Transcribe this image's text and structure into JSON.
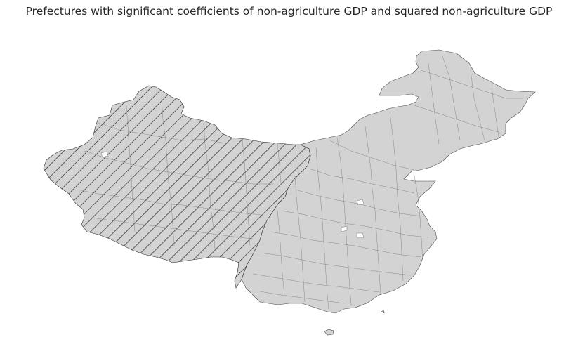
{
  "title": "Prefectures with significant coefficients of non-agriculture GDP and squared non-agriculture GDP",
  "legend": [],
  "colors": {
    "base_fill": "#d3d3d3",
    "boundary": "#4a4a4a",
    "hatch_lines": "#1a1a1a",
    "background": "#ffffff"
  },
  "regions": [
    {
      "name": "significant-prefectures",
      "pattern": "diagonal-hatch"
    },
    {
      "name": "other-prefectures",
      "pattern": "solid"
    }
  ]
}
